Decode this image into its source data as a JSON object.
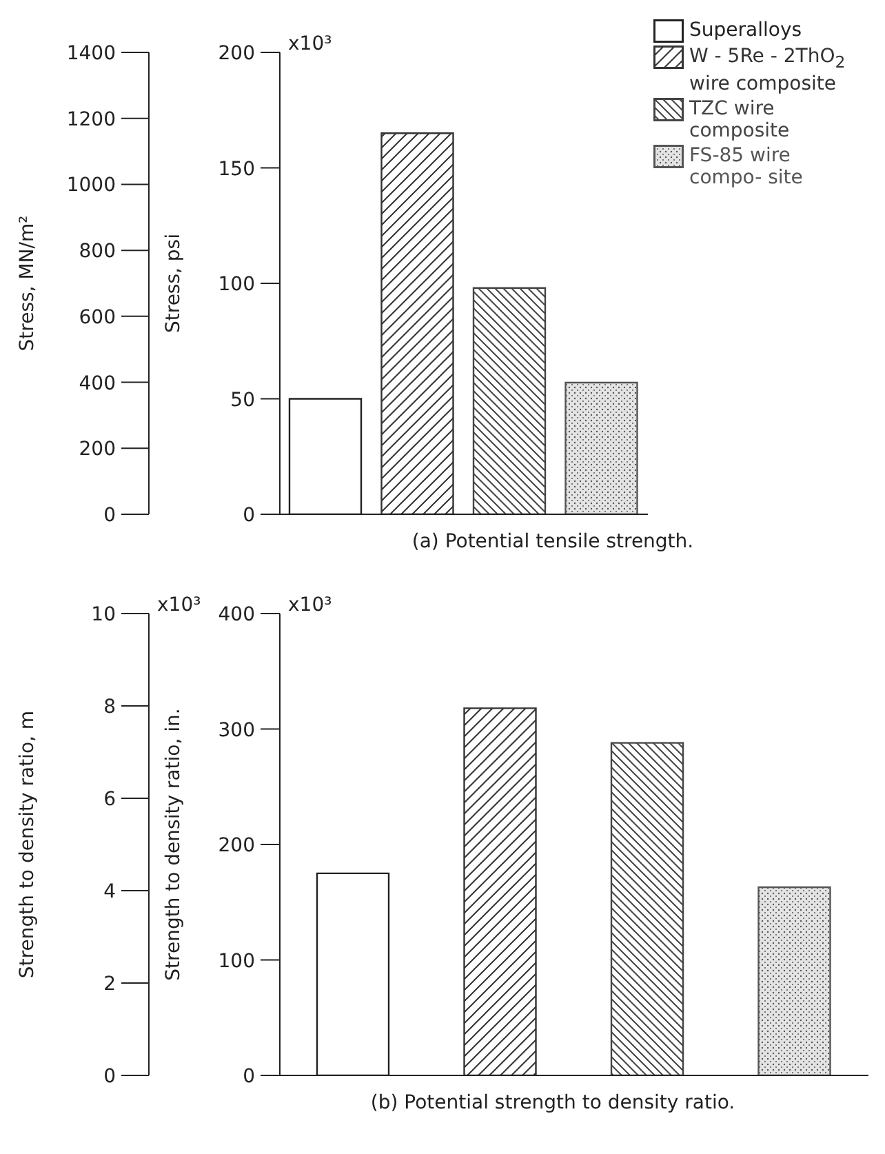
{
  "chart_data": [
    {
      "type": "bar",
      "title": "(a) Potential tensile strength.",
      "ylabel": "Stress, psi",
      "y2label": "Stress, MN/m²",
      "categories": [
        null,
        null,
        null,
        null
      ],
      "series": [
        {
          "name": "Superalloys",
          "color": "#222222",
          "values": [
            50,
            null,
            null,
            null
          ]
        },
        {
          "name": "W - 5Re - 2ThO$_{2}$ wire composite",
          "color": "#333333",
          "values": [
            null,
            165,
            null,
            null
          ]
        },
        {
          "name": "TZC wire composite",
          "color": "#444444",
          "values": [
            null,
            null,
            98,
            null
          ]
        },
        {
          "name": "FS-85 wire compo- site",
          "color": "#555555",
          "values": [
            null,
            null,
            null,
            57
          ]
        }
      ],
      "ylim": [
        0,
        200
      ],
      "yticks": [
        0,
        50,
        100,
        150,
        200
      ],
      "y2lim": [
        0,
        1400
      ],
      "y2ticks": [
        0,
        200,
        400,
        600,
        800,
        1000,
        1200,
        1400
      ],
      "annotations": [
        "x10³"
      ],
      "grid": false,
      "legend": "top right"
    },
    {
      "type": "bar",
      "title": "(b) Potential strength to density ratio.",
      "ylabel": "Strength to density ratio, in.",
      "y2label": "Strength to density ratio, m",
      "categories": [
        null,
        null,
        null,
        null
      ],
      "series": [
        {
          "color": "#222222",
          "values": [
            175,
            null,
            null,
            null
          ]
        },
        {
          "color": "#333333",
          "values": [
            null,
            318,
            null,
            null
          ]
        },
        {
          "color": "#444444",
          "values": [
            null,
            null,
            288,
            null
          ]
        },
        {
          "color": "#555555",
          "values": [
            null,
            null,
            null,
            163
          ]
        }
      ],
      "ylim": [
        0,
        400
      ],
      "yticks": [
        0,
        100,
        200,
        300,
        400
      ],
      "y2lim": [
        0,
        10
      ],
      "y2ticks": [
        0,
        2,
        4,
        6,
        8,
        10
      ],
      "annotations": [
        "x10³",
        "x10³"
      ],
      "grid": false,
      "legend": false
    }
  ]
}
